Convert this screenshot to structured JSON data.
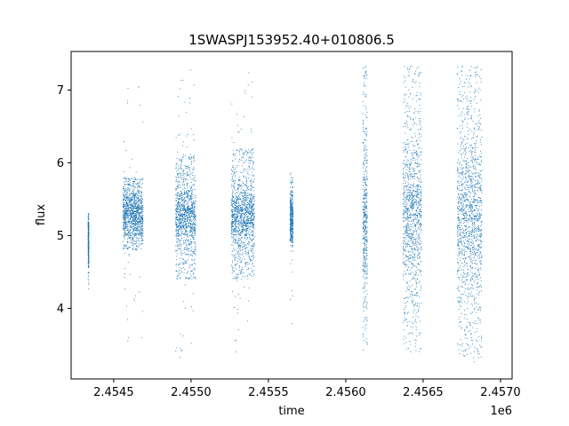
{
  "chart_data": {
    "type": "scatter",
    "title": "1SWASPJ153952.40+010806.5",
    "xlabel": "time",
    "ylabel": "flux",
    "x_offset_label": "1e6",
    "xlim": [
      2454225,
      2457075
    ],
    "ylim": [
      3.03,
      7.53
    ],
    "x_ticks": [
      2454500,
      2455000,
      2455500,
      2456000,
      2456500,
      2457000
    ],
    "x_tick_labels": [
      "2.4545",
      "2.4550",
      "2.4555",
      "2.4560",
      "2.4565",
      "2.4570"
    ],
    "y_ticks": [
      4,
      5,
      6,
      7
    ],
    "y_tick_labels": [
      "4",
      "5",
      "6",
      "7"
    ],
    "grid": false,
    "marker_color": "#1f77b4",
    "observing_clusters": [
      {
        "x_start": 2454335,
        "x_end": 2454340,
        "y_center": 4.9,
        "y_spread": 0.2,
        "core_min": 4.55,
        "core_max": 5.3,
        "min": 4.25,
        "max": 5.3
      },
      {
        "x_start": 2454560,
        "x_end": 2454690,
        "y_center": 5.3,
        "y_spread": 0.18,
        "core_min": 4.8,
        "core_max": 5.8,
        "min": 3.55,
        "max": 7.05
      },
      {
        "x_start": 2454900,
        "x_end": 2455030,
        "y_center": 5.25,
        "y_spread": 0.22,
        "core_min": 4.4,
        "core_max": 6.1,
        "min": 3.28,
        "max": 7.28
      },
      {
        "x_start": 2455260,
        "x_end": 2455410,
        "y_center": 5.25,
        "y_spread": 0.22,
        "core_min": 4.4,
        "core_max": 6.2,
        "min": 3.28,
        "max": 7.33
      },
      {
        "x_start": 2455640,
        "x_end": 2455660,
        "y_center": 5.25,
        "y_spread": 0.2,
        "core_min": 4.9,
        "core_max": 5.6,
        "min": 3.62,
        "max": 5.92
      },
      {
        "x_start": 2456110,
        "x_end": 2456140,
        "y_center": 5.3,
        "y_spread": 0.5,
        "core_min": 3.5,
        "core_max": 7.33,
        "min": 3.25,
        "max": 7.33
      },
      {
        "x_start": 2456370,
        "x_end": 2456490,
        "y_center": 5.3,
        "y_spread": 0.45,
        "core_min": 3.4,
        "core_max": 7.33,
        "min": 3.23,
        "max": 7.33
      },
      {
        "x_start": 2456720,
        "x_end": 2456880,
        "y_center": 5.3,
        "y_spread": 0.55,
        "core_min": 3.3,
        "core_max": 7.33,
        "min": 3.22,
        "max": 7.33
      }
    ]
  }
}
